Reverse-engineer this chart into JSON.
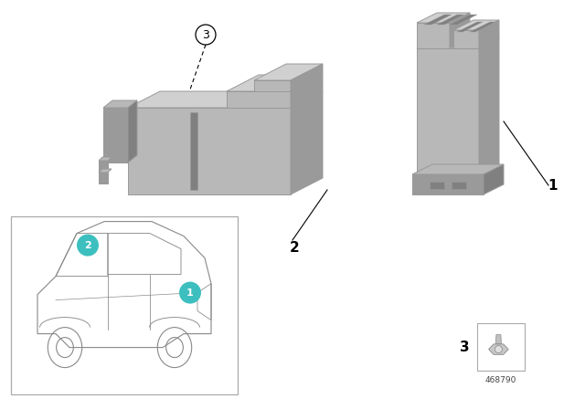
{
  "background_color": "#ffffff",
  "teal_color": "#3dbfbf",
  "car_outline_color": "#888888",
  "label_color": "#000000",
  "title_number": "468790",
  "part_gray_light": "#d0d0d0",
  "part_gray_mid": "#b8b8b8",
  "part_gray_dark": "#9a9a9a",
  "part_gray_darker": "#808080",
  "part_gray_darkest": "#6a6a6a",
  "edge_color": "#999999",
  "item1_label": "1",
  "item2_label": "2",
  "item3_label": "3"
}
